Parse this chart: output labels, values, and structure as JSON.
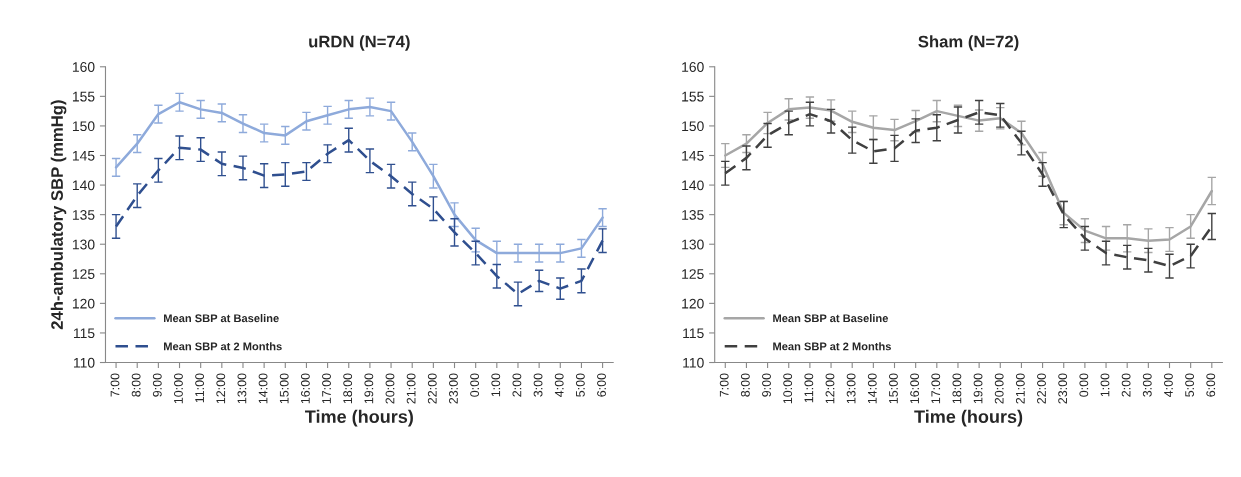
{
  "chart_data": [
    {
      "type": "line",
      "title": "uRDN (N=74)",
      "xlabel": "Time (hours)",
      "ylabel": "24h-ambulatory SBP (mmHg)",
      "categories": [
        "7:00",
        "8:00",
        "9:00",
        "10:00",
        "11:00",
        "12:00",
        "13:00",
        "14:00",
        "15:00",
        "16:00",
        "17:00",
        "18:00",
        "19:00",
        "20:00",
        "21:00",
        "22:00",
        "23:00",
        "0:00",
        "1:00",
        "2:00",
        "3:00",
        "4:00",
        "5:00",
        "6:00"
      ],
      "ylim": [
        110,
        160
      ],
      "yticks": [
        110,
        115,
        120,
        125,
        130,
        135,
        140,
        145,
        150,
        155,
        160
      ],
      "grid": false,
      "legend": "bottom left",
      "marker": "none",
      "series": [
        {
          "name": "Mean SBP at Baseline",
          "color": "#8eaadb",
          "line_style": "solid",
          "values": [
            143,
            147,
            152,
            154,
            152.8,
            152.2,
            150.4,
            148.8,
            148.4,
            150.8,
            151.8,
            152.8,
            153.2,
            152.5,
            147.3,
            141.5,
            135,
            130.7,
            128.5,
            128.5,
            128.5,
            128.5,
            129.3,
            134.5
          ],
          "errors": [
            1.5,
            1.5,
            1.5,
            1.5,
            1.5,
            1.5,
            1.5,
            1.5,
            1.5,
            1.5,
            1.5,
            1.5,
            1.5,
            1.5,
            1.5,
            2,
            2,
            2,
            2,
            1.5,
            1.5,
            1.5,
            1.5,
            1.5
          ]
        },
        {
          "name": "Mean SBP at 2 Months",
          "color": "#2f4f8f",
          "line_style": "dashed",
          "values": [
            133,
            138.2,
            142.5,
            146.3,
            146,
            143.6,
            142.9,
            141.6,
            141.8,
            142.3,
            145.3,
            147.6,
            144.1,
            141.5,
            138.5,
            136,
            132,
            128.5,
            124.6,
            121.6,
            123.8,
            122.5,
            123.8,
            130.6
          ],
          "errors": [
            2,
            2,
            2,
            2,
            2,
            2,
            2,
            2,
            2,
            1.5,
            1.5,
            2,
            2,
            2,
            2,
            2,
            2.3,
            2,
            2,
            2,
            1.8,
            1.8,
            2,
            2
          ]
        }
      ]
    },
    {
      "type": "line",
      "title": "Sham (N=72)",
      "xlabel": "Time (hours)",
      "categories": [
        "7:00",
        "8:00",
        "9:00",
        "10:00",
        "11:00",
        "12:00",
        "13:00",
        "14:00",
        "15:00",
        "16:00",
        "17:00",
        "18:00",
        "19:00",
        "20:00",
        "21:00",
        "22:00",
        "23:00",
        "0:00",
        "1:00",
        "2:00",
        "3:00",
        "4:00",
        "5:00",
        "6:00"
      ],
      "ylim": [
        110,
        160
      ],
      "yticks": [
        110,
        115,
        120,
        125,
        130,
        135,
        140,
        145,
        150,
        155,
        160
      ],
      "grid": false,
      "legend": "bottom left",
      "marker": "none",
      "series": [
        {
          "name": "Mean SBP at Baseline",
          "color": "#a6a6a6",
          "line_style": "solid",
          "values": [
            145,
            147,
            150.5,
            152.8,
            153.1,
            152.6,
            150.7,
            149.7,
            149.3,
            150.8,
            152.5,
            151.7,
            150.9,
            151.3,
            148.8,
            143.5,
            135.3,
            132.3,
            131,
            131,
            130.6,
            130.8,
            133,
            139
          ],
          "errors": [
            2,
            1.5,
            1.8,
            1.8,
            1.8,
            1.8,
            1.8,
            2,
            1.8,
            1.8,
            1.8,
            1.8,
            1.8,
            1.8,
            2,
            2,
            2,
            2,
            2,
            2.3,
            2,
            2,
            2,
            2.3
          ]
        },
        {
          "name": "Mean SBP at 2 Months",
          "color": "#404040",
          "line_style": "dashed",
          "values": [
            142,
            144.6,
            148.4,
            150.5,
            152,
            150.8,
            147.6,
            145.7,
            146.2,
            149.2,
            149.7,
            151,
            152.3,
            151.8,
            147.1,
            141.8,
            135,
            131,
            128.5,
            127.8,
            127.3,
            126.3,
            128,
            133
          ],
          "errors": [
            2,
            2,
            2,
            2,
            2,
            2,
            2.2,
            2,
            2.2,
            2,
            2.2,
            2.2,
            2,
            2,
            2,
            2,
            2.2,
            2,
            2,
            2,
            2,
            2,
            2,
            2.2
          ]
        }
      ]
    }
  ]
}
